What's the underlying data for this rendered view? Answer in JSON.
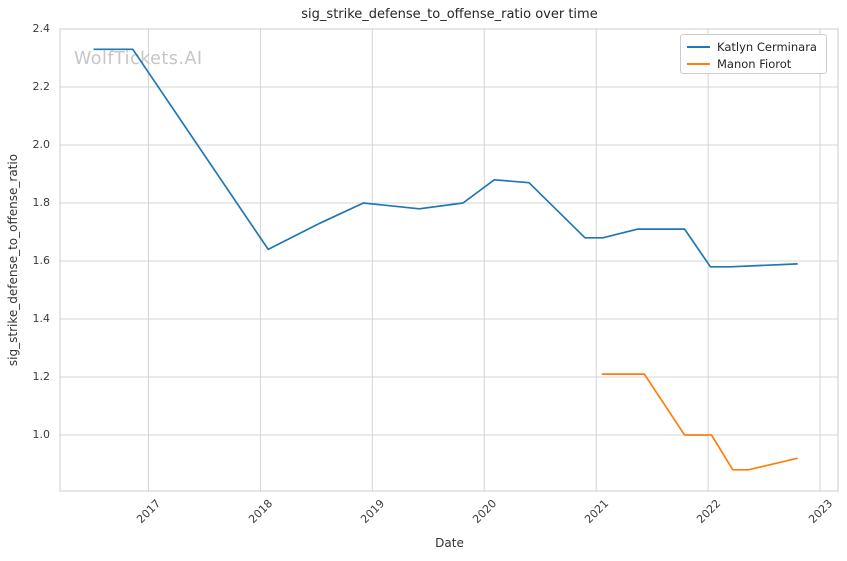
{
  "title": "sig_strike_defense_to_offense_ratio over time",
  "watermark": "WolfTickets.AI",
  "legend": {
    "position": "upper right",
    "items": [
      {
        "label": "Katlyn Cerminara",
        "color": "#1f77b4"
      },
      {
        "label": "Manon Fiorot",
        "color": "#ff7f0e"
      }
    ]
  },
  "colors": {
    "series_blue": "#1f77b4",
    "series_orange": "#ff7f0e",
    "grid": "#d4d4d4",
    "plot_border": "#cccccc",
    "watermark": "#c6c6c6",
    "text": "#3b3b3b"
  },
  "chart_data": {
    "type": "line",
    "title": "sig_strike_defense_to_offense_ratio over time",
    "xlabel": "Date",
    "ylabel": "sig_strike_defense_to_offense_ratio",
    "xlim": [
      2016.21,
      2023.16
    ],
    "ylim": [
      0.807,
      2.4
    ],
    "grid": true,
    "legend_position": "upper right",
    "x_ticks": [
      "2017",
      "2018",
      "2019",
      "2020",
      "2021",
      "2022",
      "2023"
    ],
    "y_ticks": [
      "1.0",
      "1.2",
      "1.4",
      "1.6",
      "1.8",
      "2.0",
      "2.2",
      "2.4"
    ],
    "series": [
      {
        "name": "Katlyn Cerminara",
        "color": "#1f77b4",
        "x": [
          2016.51,
          2016.86,
          2018.07,
          2018.53,
          2018.92,
          2019.42,
          2019.81,
          2020.09,
          2020.4,
          2020.9,
          2021.06,
          2021.37,
          2021.79,
          2022.02,
          2022.2,
          2022.8
        ],
        "y": [
          2.33,
          2.33,
          1.64,
          1.73,
          1.8,
          1.78,
          1.8,
          1.88,
          1.87,
          1.68,
          1.68,
          1.71,
          1.71,
          1.58,
          1.58,
          1.59
        ]
      },
      {
        "name": "Manon Fiorot",
        "color": "#ff7f0e",
        "x": [
          2021.05,
          2021.43,
          2021.79,
          2022.03,
          2022.22,
          2022.36,
          2022.8
        ],
        "y": [
          1.21,
          1.21,
          1.0,
          1.0,
          0.88,
          0.88,
          0.92
        ]
      }
    ]
  }
}
